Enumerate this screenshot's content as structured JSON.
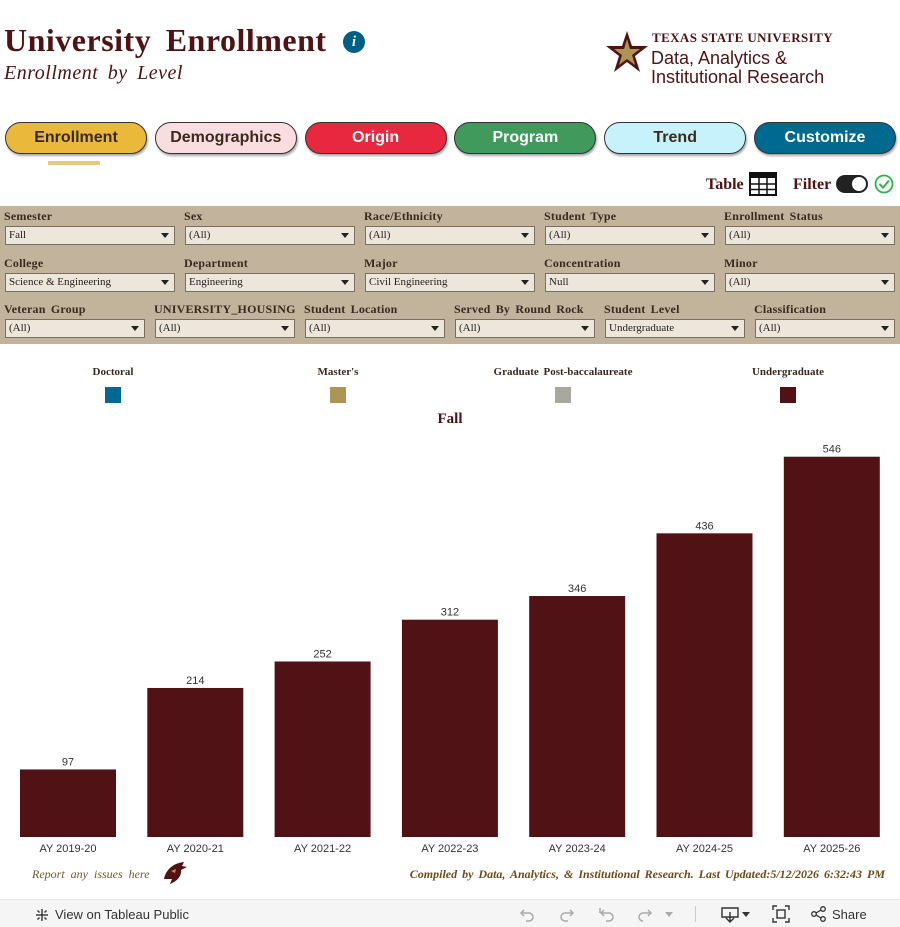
{
  "header": {
    "title": "University Enrollment",
    "subtitle": "Enrollment by Level",
    "logo": {
      "line1": "TEXAS STATE UNIVERSITY",
      "line2": "Data, Analytics &",
      "line3": "Institutional Research"
    }
  },
  "tabs": [
    {
      "label": "Enrollment",
      "bg": "#eab93c",
      "fg": "#3a2a1e"
    },
    {
      "label": "Demographics",
      "bg": "#fbdde1",
      "fg": "#3a2a1e"
    },
    {
      "label": "Origin",
      "bg": "#e8283f",
      "fg": "#ffffff"
    },
    {
      "label": "Program",
      "bg": "#3f9a5c",
      "fg": "#ffffff"
    },
    {
      "label": "Trend",
      "bg": "#c8f2fb",
      "fg": "#3a2a1e"
    },
    {
      "label": "Customize",
      "bg": "#00698f",
      "fg": "#ffffff"
    }
  ],
  "controls": {
    "table_label": "Table",
    "filter_label": "Filter"
  },
  "filters": {
    "row1": [
      {
        "label": "Semester",
        "value": "Fall"
      },
      {
        "label": "Sex",
        "value": "(All)"
      },
      {
        "label": "Race/Ethnicity",
        "value": "(All)"
      },
      {
        "label": "Student Type",
        "value": "(All)"
      },
      {
        "label": "Enrollment Status",
        "value": "(All)"
      }
    ],
    "row2": [
      {
        "label": "College",
        "value": "Science & Engineering"
      },
      {
        "label": "Department",
        "value": "Engineering"
      },
      {
        "label": "Major",
        "value": "Civil Engineering"
      },
      {
        "label": "Concentration",
        "value": "Null"
      },
      {
        "label": "Minor",
        "value": "(All)"
      }
    ],
    "row3": [
      {
        "label": "Veteran Group",
        "value": "(All)"
      },
      {
        "label": "UNIVERSITY_HOUSING",
        "value": "(All)"
      },
      {
        "label": "Student Location",
        "value": "(All)"
      },
      {
        "label": "Served By Round Rock",
        "value": "(All)"
      },
      {
        "label": "Student Level",
        "value": "Undergraduate"
      },
      {
        "label": "Classification",
        "value": "(All)"
      }
    ]
  },
  "legend": [
    {
      "label": "Doctoral",
      "color": "#00698f"
    },
    {
      "label": "Master's",
      "color": "#ad9553"
    },
    {
      "label": "Graduate Post-baccalaureate",
      "color": "#a8a89e"
    },
    {
      "label": "Undergraduate",
      "color": "#501214"
    }
  ],
  "chart_data": {
    "type": "bar",
    "title": "Fall",
    "categories": [
      "AY 2019-20",
      "AY 2020-21",
      "AY 2021-22",
      "AY 2022-23",
      "AY 2023-24",
      "AY 2024-25",
      "AY 2025-26"
    ],
    "series": [
      {
        "name": "Undergraduate",
        "color": "#501214",
        "values": [
          97,
          214,
          252,
          312,
          346,
          436,
          546
        ]
      }
    ],
    "ylim": [
      0,
      570
    ],
    "grid": false,
    "data_labels": true
  },
  "footnotes": {
    "report": "Report any issues here",
    "compiled": "Compiled by Data, Analytics, & Institutional Research. Last Updated:5/12/2026 6:32:43 PM"
  },
  "toolbar": {
    "view_label": "View on Tableau Public",
    "share_label": "Share"
  }
}
